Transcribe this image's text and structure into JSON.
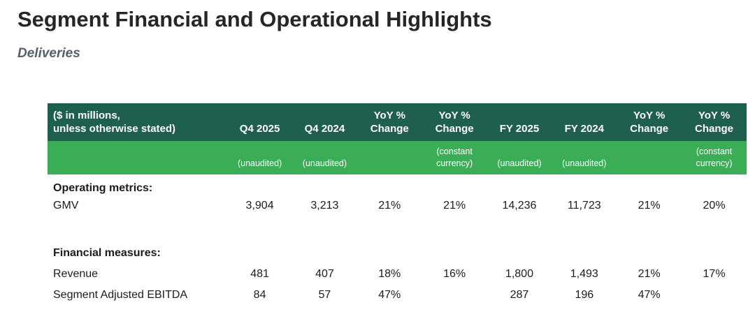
{
  "header": {
    "title": "Segment Financial and Operational Highlights",
    "subtitle": "Deliveries"
  },
  "colors": {
    "header_dark_green": "#1e5f4e",
    "header_light_green": "#3cad57",
    "header_text": "#ffffff",
    "body_text": "#1c1c1c",
    "subtitle_text": "#56606d"
  },
  "table": {
    "columns": [
      {
        "header": "($ in millions,\nunless otherwise stated)",
        "sub": ""
      },
      {
        "header": "Q4 2025",
        "sub": "(unaudited)"
      },
      {
        "header": "Q4 2024",
        "sub": "(unaudited)"
      },
      {
        "header": "YoY %\nChange",
        "sub": ""
      },
      {
        "header": "YoY %\nChange",
        "sub": "(constant\ncurrency)"
      },
      {
        "header": "FY 2025",
        "sub": "(unaudited)"
      },
      {
        "header": "FY 2024",
        "sub": "(unaudited)"
      },
      {
        "header": "YoY %\nChange",
        "sub": ""
      },
      {
        "header": "YoY %\nChange",
        "sub": "(constant\ncurrency)"
      }
    ],
    "rows": [
      {
        "label": "Operating metrics:",
        "values": [
          "",
          "",
          "",
          "",
          "",
          "",
          "",
          ""
        ]
      },
      {
        "label": "GMV",
        "values": [
          "3,904",
          "3,213",
          "21%",
          "21%",
          "14,236",
          "11,723",
          "21%",
          "20%"
        ]
      },
      {
        "label": "",
        "values": [
          "",
          "",
          "",
          "",
          "",
          "",
          "",
          ""
        ]
      },
      {
        "label": "Financial measures:",
        "values": [
          "",
          "",
          "",
          "",
          "",
          "",
          "",
          ""
        ]
      },
      {
        "label": "Revenue",
        "values": [
          "481",
          "407",
          "18%",
          "16%",
          "1,800",
          "1,493",
          "21%",
          "17%"
        ]
      },
      {
        "label": "Segment Adjusted EBITDA",
        "values": [
          "84",
          "57",
          "47%",
          "",
          "287",
          "196",
          "47%",
          ""
        ]
      }
    ]
  }
}
